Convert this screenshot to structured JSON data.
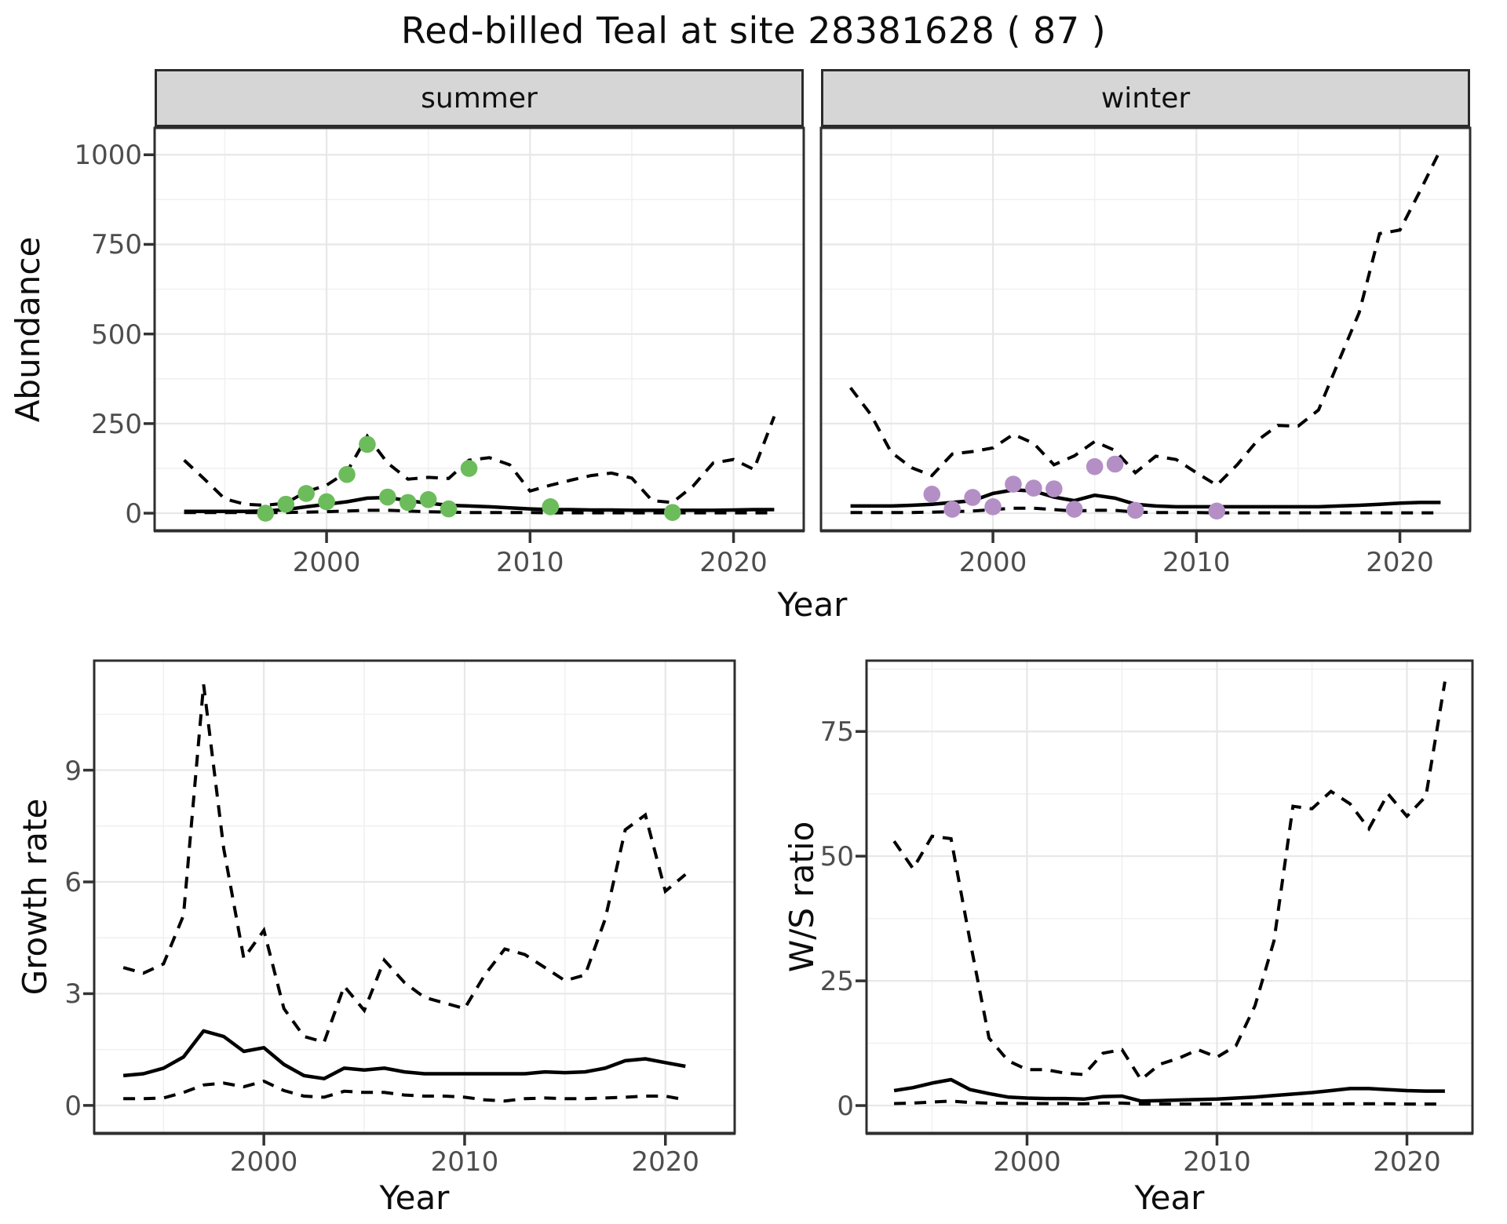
{
  "chart_data": {
    "type": "line",
    "title": "Red-billed Teal at site 28381628 ( 87 )",
    "xlabel": "Year",
    "legend": "none",
    "grid": "on",
    "line_color": "#000000",
    "ci_line_style": "dashed",
    "median_line_style": "solid",
    "colors": {
      "summer_points": "#6CBC5C",
      "winter_points": "#B48FC6",
      "strip_fill": "#D6D6D6",
      "grid_major": "#E7E7E7",
      "grid_minor": "#F1F1F1",
      "panel_border": "#2E2E2E",
      "tick_text": "#4D4D4D"
    },
    "panels": [
      {
        "id": "abundance-summer",
        "facet": "summer",
        "ylabel": "Abundance",
        "xdomain": [
          1991.55,
          2023.45
        ],
        "ydomain": [
          -48,
          1075
        ],
        "yticks": [
          0,
          250,
          500,
          750,
          1000
        ],
        "xticks": [
          2000,
          2010,
          2020
        ],
        "years": [
          1993,
          1994,
          1995,
          1996,
          1997,
          1998,
          1999,
          2000,
          2001,
          2002,
          2003,
          2004,
          2005,
          2006,
          2007,
          2008,
          2009,
          2010,
          2011,
          2012,
          2013,
          2014,
          2015,
          2016,
          2017,
          2018,
          2019,
          2020,
          2021,
          2022
        ],
        "upper_ci": [
          148,
          95,
          40,
          25,
          22,
          28,
          60,
          78,
          115,
          215,
          140,
          95,
          100,
          97,
          148,
          155,
          135,
          62,
          78,
          92,
          105,
          112,
          98,
          35,
          30,
          75,
          140,
          150,
          122,
          270
        ],
        "median": [
          5,
          5,
          5,
          5,
          6,
          10,
          18,
          25,
          32,
          42,
          44,
          35,
          28,
          22,
          20,
          18,
          15,
          12,
          10,
          10,
          9,
          9,
          8,
          8,
          8,
          8,
          8,
          9,
          10,
          10
        ],
        "lower_ci": [
          2,
          2,
          2,
          2,
          2,
          2,
          3,
          4,
          6,
          8,
          8,
          6,
          4,
          3,
          2,
          2,
          2,
          2,
          1,
          1,
          1,
          1,
          1,
          1,
          1,
          1,
          1,
          1,
          1,
          1
        ],
        "points": {
          "color": "#6CBC5C",
          "years": [
            1997,
            1998,
            1999,
            2000,
            2001,
            2002,
            2003,
            2004,
            2005,
            2006,
            2007,
            2011,
            2017
          ],
          "values": [
            0,
            25,
            55,
            32,
            108,
            192,
            45,
            30,
            38,
            12,
            125,
            18,
            2
          ]
        }
      },
      {
        "id": "abundance-winter",
        "facet": "winter",
        "ylabel": "Abundance",
        "xdomain": [
          1991.55,
          2023.45
        ],
        "ydomain": [
          -48,
          1075
        ],
        "yticks": [
          0,
          250,
          500,
          750,
          1000
        ],
        "xticks": [
          2000,
          2010,
          2020
        ],
        "years": [
          1993,
          1994,
          1995,
          1996,
          1997,
          1998,
          1999,
          2000,
          2001,
          2002,
          2003,
          2004,
          2005,
          2006,
          2007,
          2008,
          2009,
          2010,
          2011,
          2012,
          2013,
          2014,
          2015,
          2016,
          2017,
          2018,
          2019,
          2020,
          2021,
          2022
        ],
        "upper_ci": [
          350,
          275,
          170,
          127,
          105,
          165,
          172,
          182,
          220,
          195,
          135,
          160,
          200,
          175,
          113,
          159,
          150,
          113,
          78,
          135,
          203,
          245,
          243,
          288,
          425,
          560,
          780,
          790,
          900,
          1015
        ],
        "median": [
          20,
          20,
          20,
          22,
          25,
          30,
          35,
          55,
          65,
          62,
          45,
          35,
          50,
          42,
          25,
          20,
          18,
          18,
          18,
          18,
          18,
          18,
          18,
          18,
          20,
          22,
          25,
          28,
          30,
          30
        ],
        "lower_ci": [
          2,
          2,
          2,
          2,
          3,
          4,
          6,
          10,
          14,
          14,
          10,
          6,
          8,
          8,
          3,
          2,
          2,
          2,
          1,
          1,
          1,
          1,
          1,
          1,
          1,
          1,
          1,
          1,
          1,
          1
        ],
        "points": {
          "color": "#B48FC6",
          "years": [
            1997,
            1998,
            1999,
            2000,
            2001,
            2002,
            2003,
            2004,
            2005,
            2006,
            2007,
            2011
          ],
          "values": [
            53,
            11,
            44,
            18,
            81,
            70,
            68,
            11,
            130,
            137,
            8,
            6
          ]
        }
      },
      {
        "id": "growth-rate",
        "facet": null,
        "ylabel": "Growth rate",
        "xdomain": [
          1991.55,
          2023.45
        ],
        "ydomain": [
          -0.74,
          11.94
        ],
        "yticks": [
          0,
          3,
          6,
          9
        ],
        "xticks": [
          2000,
          2010,
          2020
        ],
        "years": [
          1993,
          1994,
          1995,
          1996,
          1997,
          1998,
          1999,
          2000,
          2001,
          2002,
          2003,
          2004,
          2005,
          2006,
          2007,
          2008,
          2009,
          2010,
          2011,
          2012,
          2013,
          2014,
          2015,
          2016,
          2017,
          2018,
          2019,
          2020,
          2021
        ],
        "upper_ci": [
          3.7,
          3.55,
          3.8,
          5.1,
          11.3,
          6.9,
          3.95,
          4.7,
          2.6,
          1.85,
          1.7,
          3.2,
          2.55,
          3.9,
          3.3,
          2.9,
          2.75,
          2.6,
          3.5,
          4.2,
          4.05,
          3.7,
          3.35,
          3.5,
          5.0,
          7.4,
          7.8,
          5.75,
          6.2
        ],
        "median": [
          0.8,
          0.85,
          1.0,
          1.3,
          2.0,
          1.85,
          1.45,
          1.55,
          1.1,
          0.8,
          0.72,
          1.0,
          0.95,
          1.0,
          0.9,
          0.85,
          0.85,
          0.85,
          0.85,
          0.85,
          0.85,
          0.9,
          0.88,
          0.9,
          1.0,
          1.2,
          1.25,
          1.15,
          1.05
        ],
        "lower_ci": [
          0.18,
          0.18,
          0.2,
          0.35,
          0.55,
          0.6,
          0.5,
          0.65,
          0.4,
          0.25,
          0.22,
          0.38,
          0.35,
          0.35,
          0.28,
          0.25,
          0.25,
          0.22,
          0.15,
          0.12,
          0.18,
          0.2,
          0.18,
          0.18,
          0.2,
          0.22,
          0.25,
          0.25,
          0.15
        ],
        "points": null
      },
      {
        "id": "ws-ratio",
        "facet": null,
        "ylabel": "W/S ratio",
        "xdomain": [
          1991.55,
          2023.45
        ],
        "ydomain": [
          -5.5,
          89.2
        ],
        "yticks": [
          0,
          25,
          50,
          75
        ],
        "xticks": [
          2000,
          2010,
          2020
        ],
        "years": [
          1993,
          1994,
          1995,
          1996,
          1997,
          1998,
          1999,
          2000,
          2001,
          2002,
          2003,
          2004,
          2005,
          2006,
          2007,
          2008,
          2009,
          2010,
          2011,
          2012,
          2013,
          2014,
          2015,
          2016,
          2017,
          2018,
          2019,
          2020,
          2021,
          2022
        ],
        "upper_ci": [
          53,
          47.5,
          54,
          53.5,
          33,
          13.5,
          9,
          7.2,
          7.2,
          6.5,
          6.2,
          10.5,
          11.2,
          5.2,
          8.3,
          9.5,
          11.2,
          9.7,
          12,
          20,
          33,
          60,
          59.5,
          63,
          60.5,
          55.5,
          62.5,
          58,
          62,
          85
        ],
        "median": [
          3.0,
          3.6,
          4.5,
          5.2,
          3.2,
          2.4,
          1.7,
          1.5,
          1.4,
          1.4,
          1.3,
          1.8,
          1.9,
          0.9,
          1.0,
          1.1,
          1.2,
          1.3,
          1.5,
          1.7,
          2.0,
          2.3,
          2.6,
          3.0,
          3.4,
          3.4,
          3.2,
          3.0,
          2.9,
          2.9
        ],
        "lower_ci": [
          0.4,
          0.5,
          0.7,
          0.9,
          0.6,
          0.5,
          0.45,
          0.4,
          0.4,
          0.4,
          0.35,
          0.5,
          0.5,
          0.3,
          0.3,
          0.3,
          0.3,
          0.3,
          0.3,
          0.3,
          0.3,
          0.3,
          0.3,
          0.3,
          0.35,
          0.35,
          0.35,
          0.3,
          0.3,
          0.3
        ],
        "points": null
      }
    ]
  }
}
